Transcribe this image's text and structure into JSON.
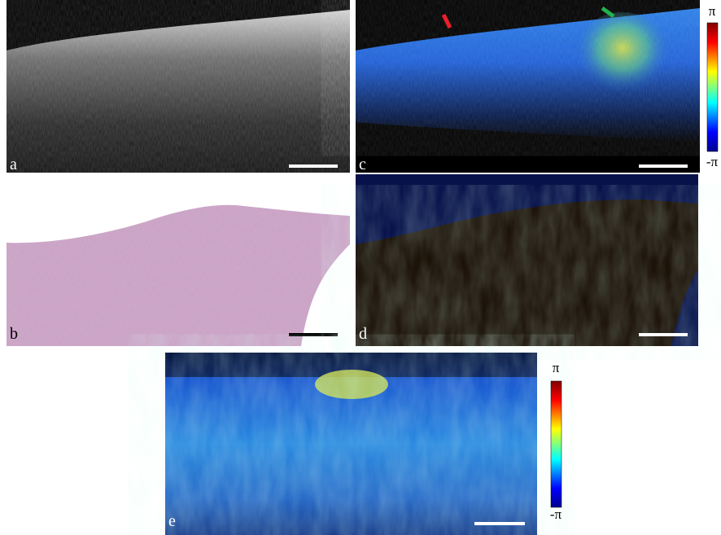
{
  "panels": [
    {
      "label": "a"
    },
    {
      "label": "b"
    },
    {
      "label": "c"
    },
    {
      "label": "d"
    },
    {
      "label": "e"
    }
  ],
  "colorbars": [
    {
      "max": "π",
      "min": "-π"
    },
    {
      "max": "π",
      "min": "-π"
    }
  ]
}
